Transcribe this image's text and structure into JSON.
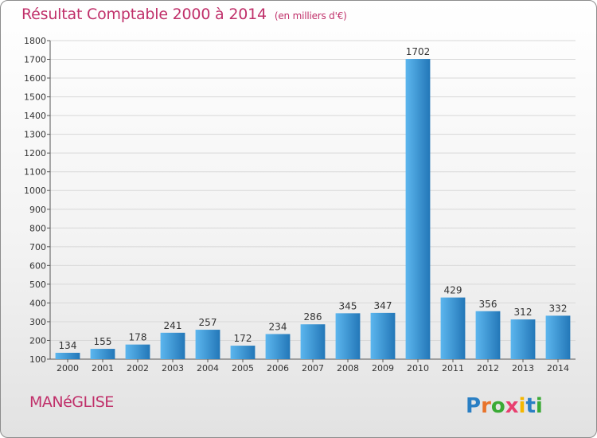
{
  "header": {
    "title": "Résultat Comptable 2000 à 2014",
    "subtitle": "(en milliers d'€)"
  },
  "footer": {
    "city": "MANéGLISE",
    "logo_text": "Proxiti",
    "logo_colors": [
      "#2a7fc4",
      "#e8732a",
      "#3aaa35",
      "#e83f6f",
      "#f5b700",
      "#2a7fc4",
      "#3aaa35"
    ]
  },
  "colors": {
    "bar_light": "#5cb6ee",
    "bar_dark": "#2377b8",
    "grid": "#d8d8d8",
    "accent": "#c0306a"
  },
  "chart_data": {
    "type": "bar",
    "title": "Résultat Comptable 2000 à 2014",
    "subtitle": "(en milliers d'€)",
    "xlabel": "",
    "ylabel": "",
    "categories": [
      "2000",
      "2001",
      "2002",
      "2003",
      "2004",
      "2005",
      "2006",
      "2007",
      "2008",
      "2009",
      "2010",
      "2011",
      "2012",
      "2013",
      "2014"
    ],
    "values": [
      134,
      155,
      178,
      241,
      257,
      172,
      234,
      286,
      345,
      347,
      1702,
      429,
      356,
      312,
      332
    ],
    "ylim": [
      100,
      1800
    ],
    "yticks": [
      100,
      200,
      300,
      400,
      500,
      600,
      700,
      800,
      900,
      1000,
      1100,
      1200,
      1300,
      1400,
      1500,
      1600,
      1700,
      1800
    ],
    "grid": true,
    "legend": "none"
  }
}
